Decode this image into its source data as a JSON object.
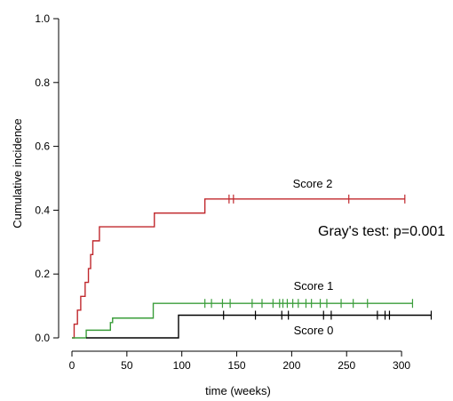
{
  "chart_data": {
    "type": "line",
    "step": true,
    "xlabel": "time (weeks)",
    "ylabel": "Cumulative incidence",
    "xlim": [
      0,
      325
    ],
    "ylim": [
      0,
      1
    ],
    "xticks": [
      0,
      50,
      100,
      150,
      200,
      250,
      300
    ],
    "yticks": [
      "0.0",
      "0.2",
      "0.4",
      "0.6",
      "0.8",
      "1.0"
    ],
    "grid": false,
    "series": [
      {
        "name": "Score 2",
        "color": "#c0282d",
        "steps": [
          [
            0,
            0
          ],
          [
            2,
            0.043
          ],
          [
            5,
            0.087
          ],
          [
            8,
            0.13
          ],
          [
            12,
            0.174
          ],
          [
            15,
            0.217
          ],
          [
            17,
            0.261
          ],
          [
            19,
            0.304
          ],
          [
            25,
            0.348
          ],
          [
            75,
            0.391
          ],
          [
            121,
            0.435
          ],
          [
            303,
            0.435
          ]
        ],
        "censored": [
          143,
          147,
          252,
          303
        ]
      },
      {
        "name": "Score 1",
        "color": "#3a9d3a",
        "steps": [
          [
            0,
            0
          ],
          [
            13,
            0.024
          ],
          [
            35,
            0.048
          ],
          [
            37,
            0.062
          ],
          [
            74,
            0.108
          ],
          [
            310,
            0.108
          ]
        ],
        "censored": [
          121,
          127,
          137,
          144,
          164,
          173,
          183,
          189,
          192,
          196,
          201,
          206,
          213,
          218,
          226,
          232,
          245,
          256,
          269,
          310
        ]
      },
      {
        "name": "Score 0",
        "color": "#000000",
        "steps": [
          [
            13,
            0
          ],
          [
            97,
            0
          ],
          [
            97,
            0.071
          ],
          [
            327,
            0.071
          ]
        ],
        "censored": [
          138,
          167,
          191,
          197,
          229,
          236,
          278,
          285,
          289,
          327
        ]
      }
    ],
    "annotation": "Gray's test: p=0.001"
  }
}
